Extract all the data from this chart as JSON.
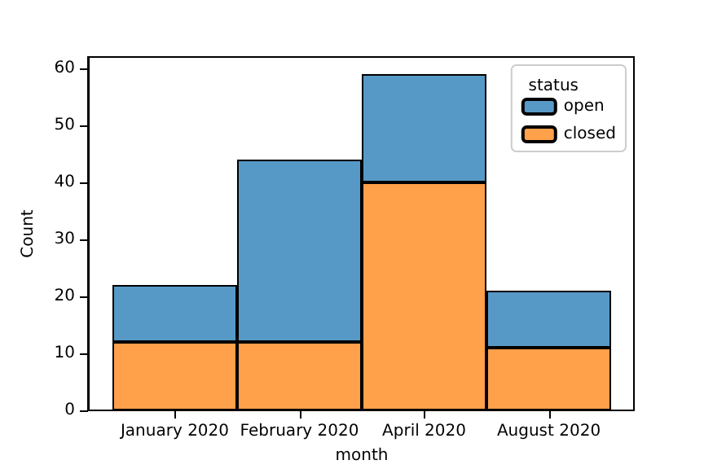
{
  "chart_data": {
    "type": "bar",
    "stacked": true,
    "xlabel": "month",
    "ylabel": "Count",
    "legend_title": "status",
    "legend": "top right",
    "grid": false,
    "categories": [
      "January 2020",
      "February 2020",
      "April 2020",
      "August 2020"
    ],
    "series": [
      {
        "name": "closed",
        "color": "#ffa04a",
        "values": [
          12,
          12,
          40,
          11
        ]
      },
      {
        "name": "open",
        "color": "#5799c6",
        "values": [
          10,
          32,
          19,
          10
        ]
      }
    ],
    "ylim": [
      0,
      62
    ],
    "yticks": [
      0,
      10,
      20,
      30,
      40,
      50,
      60
    ]
  }
}
